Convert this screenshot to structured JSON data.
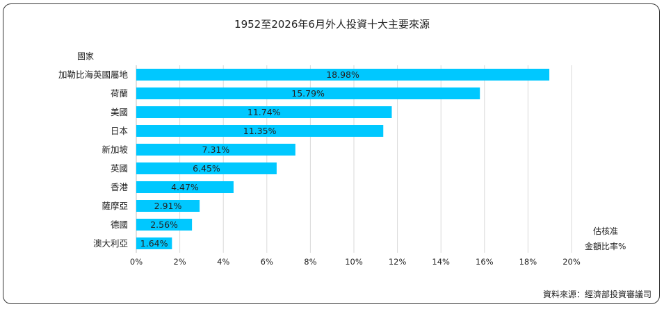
{
  "chart_data": {
    "type": "bar",
    "orientation": "horizontal",
    "title": "1952至2026年6月外人投資十大主要來源",
    "ylabel": "國家",
    "xlabel_lines": [
      "估核准",
      "金額比率%"
    ],
    "categories": [
      "加勒比海英國屬地",
      "荷蘭",
      "美國",
      "日本",
      "新加坡",
      "英國",
      "香港",
      "薩摩亞",
      "德國",
      "澳大利亞"
    ],
    "values": [
      18.98,
      15.79,
      11.74,
      11.35,
      7.31,
      6.45,
      4.47,
      2.91,
      2.56,
      1.64
    ],
    "value_labels": [
      "18.98%",
      "15.79%",
      "11.74%",
      "11.35%",
      "7.31%",
      "6.45%",
      "4.47%",
      "2.91%",
      "2.56%",
      "1.64%"
    ],
    "xlim": [
      0,
      20
    ],
    "xticks": [
      0,
      2,
      4,
      6,
      8,
      10,
      12,
      14,
      16,
      18,
      20
    ],
    "xtick_labels": [
      "0%",
      "2%",
      "4%",
      "6%",
      "8%",
      "10%",
      "12%",
      "14%",
      "16%",
      "18%",
      "20%"
    ],
    "grid": true,
    "bar_color": "#00c8ff",
    "source": "資料來源：經濟部投資審議司"
  }
}
